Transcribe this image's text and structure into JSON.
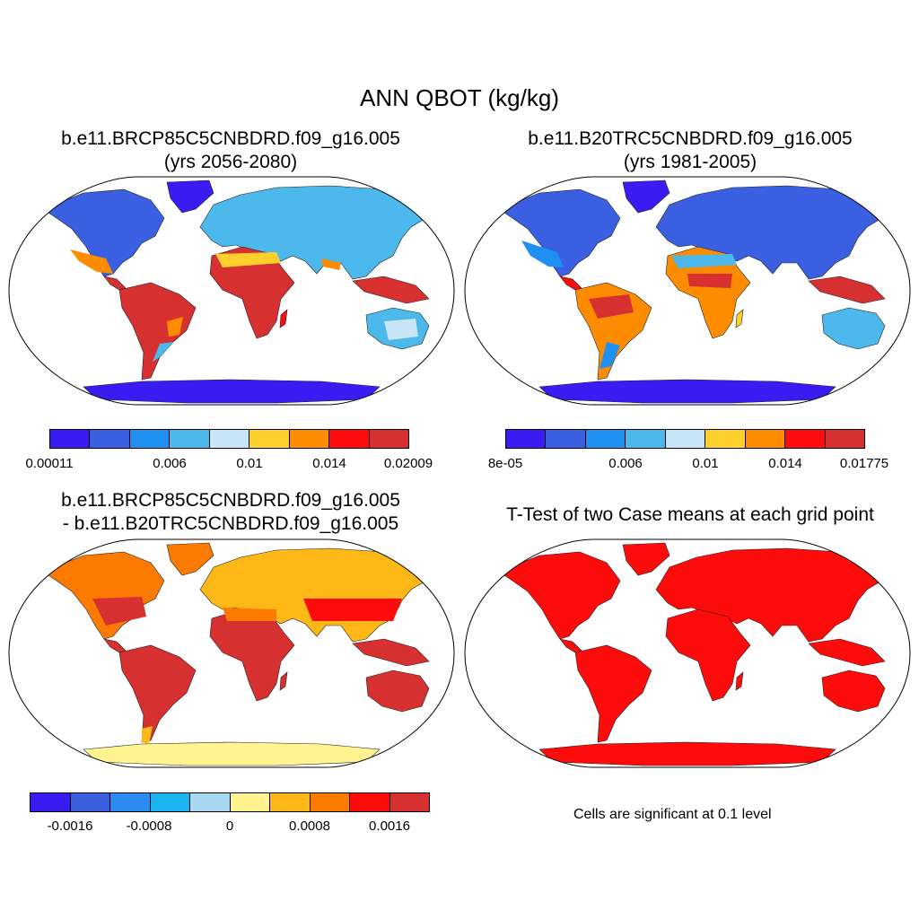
{
  "title": "ANN QBOT (kg/kg)",
  "panels": [
    {
      "id": "test",
      "title_line1": "b.e11.BRCP85C5CNBDRD.f09_g16.005",
      "title_line2": "(yrs 2056-2080)",
      "colorbar": {
        "colors": [
          "#3a1cf2",
          "#3a5fe0",
          "#1f8ff2",
          "#4cb8ec",
          "#c9e6f8",
          "#fdd02e",
          "#fd8c00",
          "#fd0c0c",
          "#d73030"
        ],
        "labels": [
          "0.00011",
          "0.006",
          "0.01",
          "0.014",
          "0.02009"
        ]
      }
    },
    {
      "id": "control",
      "title_line1": "b.e11.B20TRC5CNBDRD.f09_g16.005",
      "title_line2": "(yrs 1981-2005)",
      "colorbar": {
        "colors": [
          "#3a1cf2",
          "#3a5fe0",
          "#1f8ff2",
          "#4cb8ec",
          "#c9e6f8",
          "#fdd02e",
          "#fd8c00",
          "#fd0c0c",
          "#d73030"
        ],
        "labels": [
          "8e-05",
          "0.006",
          "0.01",
          "0.014",
          "0.01775"
        ]
      }
    },
    {
      "id": "diff",
      "title_line1": "b.e11.BRCP85C5CNBDRD.f09_g16.005",
      "title_line2": "- b.e11.B20TRC5CNBDRD.f09_g16.005",
      "colorbar": {
        "colors": [
          "#3a1cf2",
          "#3a5fe0",
          "#2a8cf0",
          "#1cb4f0",
          "#a8d8f0",
          "#fff490",
          "#fdb818",
          "#fd7a00",
          "#fd0c0c",
          "#d73030"
        ],
        "labels": [
          "-0.0016",
          "-0.0008",
          "0",
          "0.0008",
          "0.0016"
        ]
      }
    },
    {
      "id": "ttest",
      "title_line1": "T-Test of two Case means at each grid point",
      "note": "Cells are significant at 0.1 level"
    }
  ]
}
